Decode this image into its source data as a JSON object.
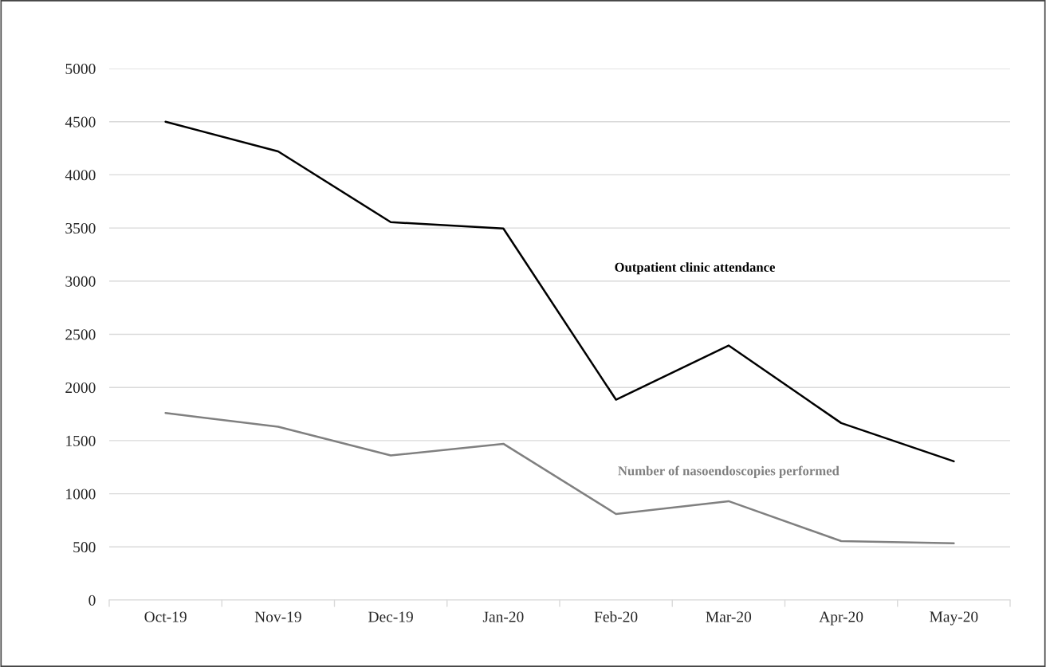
{
  "chart_data": {
    "type": "line",
    "categories": [
      "Oct-19",
      "Nov-19",
      "Dec-19",
      "Jan-20",
      "Feb-20",
      "Mar-20",
      "Apr-20",
      "May-20"
    ],
    "series": [
      {
        "name": "Outpatient clinic attendance",
        "color": "#000000",
        "values": [
          4500,
          4220,
          3555,
          3495,
          1885,
          2395,
          1665,
          1305
        ]
      },
      {
        "name": "Number of nasoendoscopies performed",
        "color": "#808080",
        "values": [
          1760,
          1630,
          1360,
          1470,
          810,
          930,
          555,
          535
        ]
      }
    ],
    "ylim": [
      0,
      5000
    ],
    "yticks": [
      0,
      500,
      1000,
      1500,
      2000,
      2500,
      3000,
      3500,
      4000,
      4500,
      5000
    ],
    "grid": "y",
    "legend": false,
    "marker": "none",
    "line_style": "solid"
  }
}
